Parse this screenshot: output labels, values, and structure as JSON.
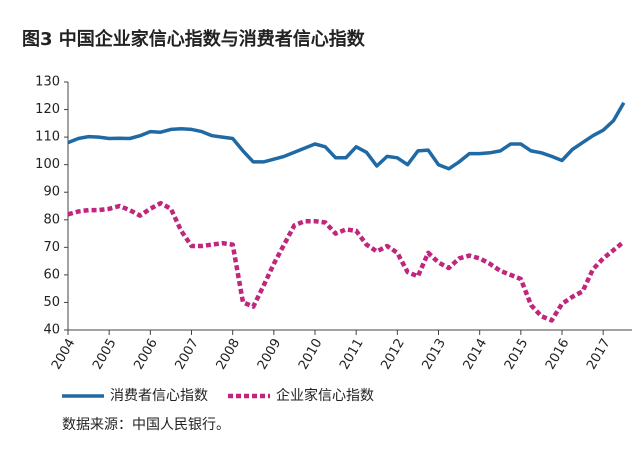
{
  "chart_data": {
    "type": "line",
    "title": "图3   中国企业家信心指数与消费者信心指数",
    "source": "数据来源：中国人民银行。",
    "x": [
      2004,
      2004.25,
      2004.5,
      2004.75,
      2005,
      2005.25,
      2005.5,
      2005.75,
      2006,
      2006.25,
      2006.5,
      2006.75,
      2007,
      2007.25,
      2007.5,
      2007.75,
      2008,
      2008.25,
      2008.5,
      2008.75,
      2009,
      2009.25,
      2009.5,
      2009.75,
      2010,
      2010.25,
      2010.5,
      2010.75,
      2011,
      2011.25,
      2011.5,
      2011.75,
      2012,
      2012.25,
      2012.5,
      2012.75,
      2013,
      2013.25,
      2013.5,
      2013.75,
      2014,
      2014.25,
      2014.5,
      2014.75,
      2015,
      2015.25,
      2015.5,
      2015.75,
      2016,
      2016.25,
      2016.5,
      2016.75,
      2017,
      2017.25,
      2017.5
    ],
    "series": [
      {
        "name": "消费者信心指数",
        "color": "#1f6aa5",
        "dashed": false,
        "values": [
          108,
          109.5,
          110.2,
          110,
          109.5,
          109.6,
          109.5,
          110.5,
          112,
          111.8,
          112.8,
          113,
          112.8,
          112,
          110.5,
          110,
          109.5,
          105,
          101,
          101,
          102,
          103,
          104.5,
          106,
          107.5,
          106.5,
          102.5,
          102.5,
          106.5,
          104.5,
          99.5,
          103,
          102.5,
          100,
          105,
          105.3,
          100,
          98.5,
          101,
          104,
          104,
          104.3,
          105,
          107.5,
          107.5,
          105,
          104.3,
          103,
          101.5,
          105.5,
          108,
          110.5,
          112.5,
          116,
          122.5
        ]
      },
      {
        "name": "企业家信心指数",
        "color": "#c0267e",
        "dashed": true,
        "values": [
          82,
          83,
          83.5,
          83.5,
          84,
          85,
          83.5,
          81.5,
          84,
          86,
          84,
          76,
          70.5,
          70.5,
          71,
          71.5,
          71,
          50,
          48.5,
          56,
          64,
          71,
          78,
          79.5,
          79.5,
          79,
          75,
          76.5,
          76,
          71,
          68.5,
          70.5,
          68,
          61,
          59.5,
          68,
          64.5,
          62.5,
          66,
          67,
          66,
          64,
          61.5,
          60,
          58.5,
          49,
          45,
          43.5,
          49.5,
          52,
          54,
          62,
          66,
          69,
          72
        ]
      }
    ],
    "xlim": [
      2004,
      2017.7
    ],
    "xticks": [
      2004,
      2005,
      2006,
      2007,
      2008,
      2009,
      2010,
      2011,
      2012,
      2013,
      2014,
      2015,
      2016,
      2017
    ],
    "ylim": [
      40,
      130
    ],
    "yticks": [
      40,
      50,
      60,
      70,
      80,
      90,
      100,
      110,
      120,
      130
    ],
    "grid": false
  }
}
